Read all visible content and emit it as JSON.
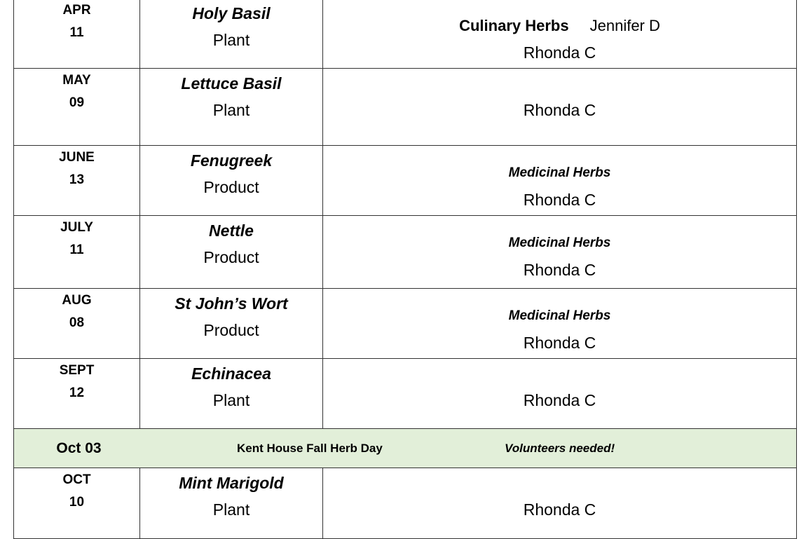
{
  "rows": [
    {
      "month": "APR",
      "day": "11",
      "name": "Holy Basil",
      "kind": "Plant",
      "topic": "Culinary Herbs",
      "co_host": "Jennifer D",
      "person": "Rhonda C"
    },
    {
      "month": "MAY",
      "day": "09",
      "name": "Lettuce Basil",
      "kind": "Plant",
      "person": "Rhonda C"
    },
    {
      "month": "JUNE",
      "day": "13",
      "name": "Fenugreek",
      "kind": "Product",
      "topic": "Medicinal Herbs",
      "person": "Rhonda C"
    },
    {
      "month": "JULY",
      "day": "11",
      "name": "Nettle",
      "kind": "Product",
      "topic": "Medicinal Herbs",
      "person": "Rhonda C"
    },
    {
      "month": "AUG",
      "day": "08",
      "name": "St John’s Wort",
      "kind": "Product",
      "topic": "Medicinal Herbs",
      "person": "Rhonda C"
    },
    {
      "month": "SEPT",
      "day": "12",
      "name": "Echinacea",
      "kind": "Plant",
      "person": "Rhonda C"
    }
  ],
  "event": {
    "date": "Oct 03",
    "title": "Kent House Fall Herb Day",
    "note": "Volunteers needed!",
    "color": "#e2efd9"
  },
  "last": {
    "month": "OCT",
    "day": "10",
    "name": "Mint Marigold",
    "kind": "Plant",
    "person": "Rhonda C"
  }
}
